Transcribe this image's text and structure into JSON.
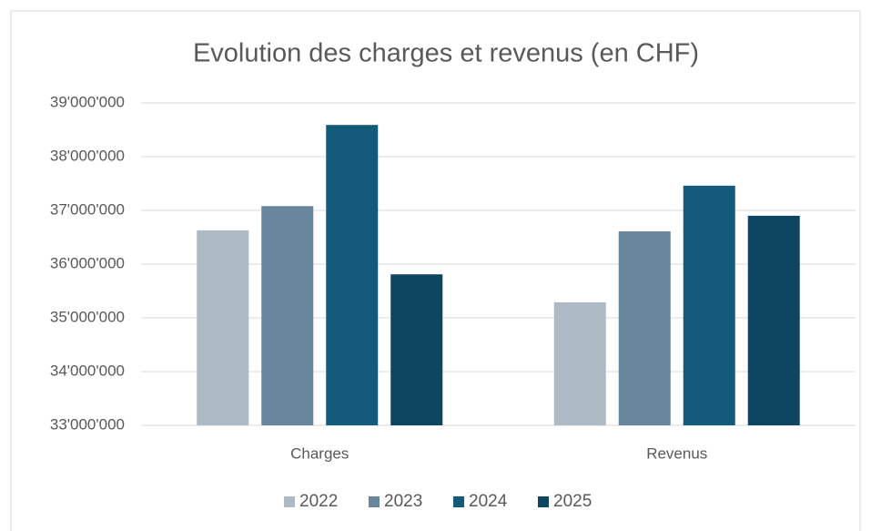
{
  "chart_data": {
    "type": "bar",
    "title": "Evolution des charges et revenus (en CHF)",
    "categories": [
      "Charges",
      "Revenus"
    ],
    "series": [
      {
        "name": "2022",
        "color": "#adb9c4",
        "values": [
          36630000,
          35290000
        ]
      },
      {
        "name": "2023",
        "color": "#68869c",
        "values": [
          37080000,
          36610000
        ]
      },
      {
        "name": "2024",
        "color": "#145a7a",
        "values": [
          38590000,
          37460000
        ]
      },
      {
        "name": "2025",
        "color": "#0e4560",
        "values": [
          35810000,
          36900000
        ]
      }
    ],
    "ylim": [
      33000000,
      39000000
    ],
    "yticks": [
      {
        "value": 33000000,
        "label": "33'000'000"
      },
      {
        "value": 34000000,
        "label": "34'000'000"
      },
      {
        "value": 35000000,
        "label": "35'000'000"
      },
      {
        "value": 36000000,
        "label": "36'000'000"
      },
      {
        "value": 37000000,
        "label": "37'000'000"
      },
      {
        "value": 38000000,
        "label": "38'000'000"
      },
      {
        "value": 39000000,
        "label": "39'000'000"
      }
    ],
    "grid": true,
    "legend": "bottom"
  }
}
